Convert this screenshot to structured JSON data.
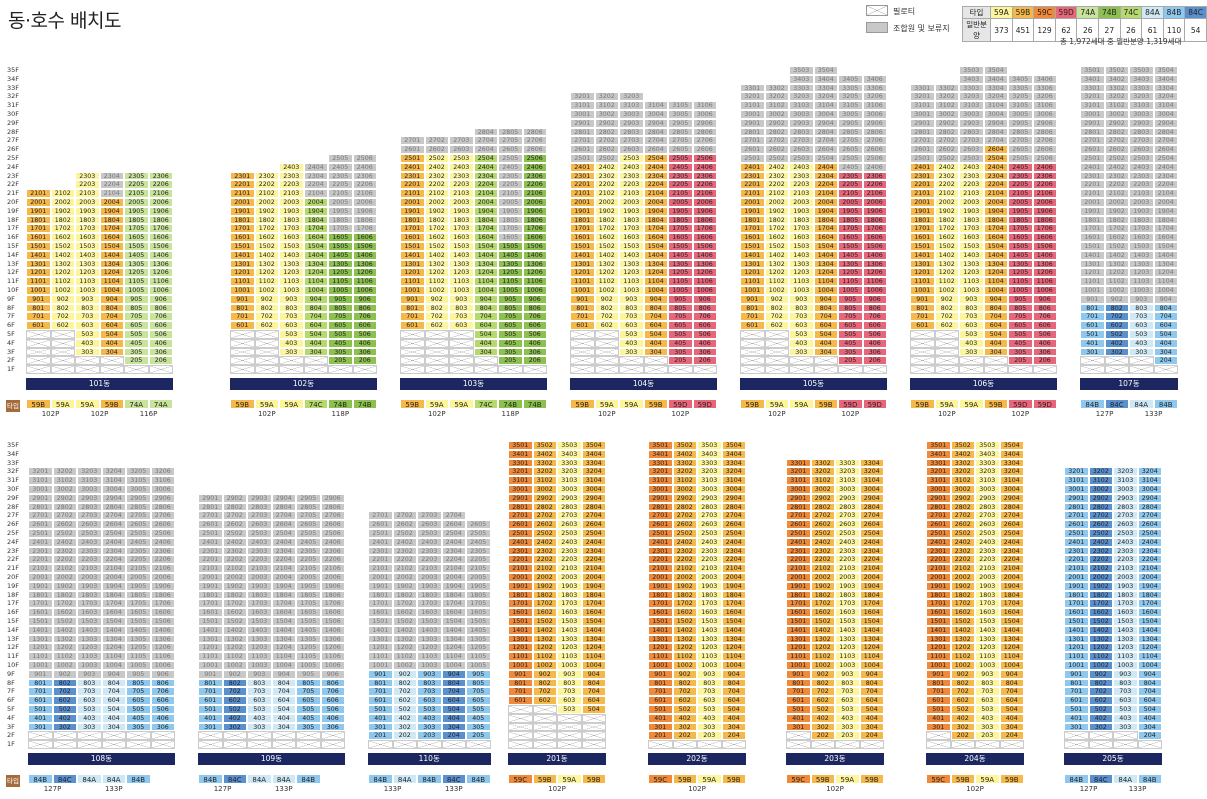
{
  "title": "동·호수 배치도",
  "legend": {
    "pilotis": "필로티",
    "reserved": "조합원 및 보류지"
  },
  "type_table": {
    "row1_label": "타입",
    "row2_label": "일반분양",
    "types": [
      "59A",
      "59B",
      "59C",
      "59D",
      "74A",
      "74B",
      "74C",
      "84A",
      "84B",
      "84C"
    ],
    "counts": [
      "373",
      "451",
      "129",
      "62",
      "26",
      "27",
      "26",
      "61",
      "110",
      "54"
    ]
  },
  "total_text": "총 1,972세대 중 일반분양 1,319세대",
  "type_row_label": "타입",
  "colors": {
    "59A": "#fdf59b",
    "59B": "#f7b84a",
    "59C": "#f08a3a",
    "59D": "#e8667a",
    "74A": "#c8e39a",
    "74B": "#8cc04f",
    "74C": "#b5d96d",
    "84A": "#cfe8f5",
    "84B": "#8ec8ee",
    "84C": "#5b90cf",
    "reserved": "#c8c8c8",
    "pilotis": "#ffffff"
  },
  "floors": [
    "35F",
    "34F",
    "33F",
    "32F",
    "31F",
    "30F",
    "29F",
    "28F",
    "27F",
    "26F",
    "25F",
    "24F",
    "23F",
    "22F",
    "21F",
    "20F",
    "19F",
    "18F",
    "17F",
    "16F",
    "15F",
    "14F",
    "13F",
    "12F",
    "11F",
    "10F",
    "9F",
    "8F",
    "7F",
    "6F",
    "5F",
    "4F",
    "3F",
    "2F",
    "1F"
  ],
  "buildings": [
    {
      "name": "101동",
      "row": 0,
      "x": 26,
      "lines": 6,
      "top": [
        21,
        21,
        23,
        23,
        23,
        23
      ],
      "types": [
        "59B",
        "59A",
        "59A",
        "59B",
        "74A",
        "74A"
      ],
      "ptypes": [
        "102P",
        "102P",
        "116P"
      ],
      "pspans": [
        2,
        2,
        2
      ],
      "reservedAbove": [
        0,
        0,
        0,
        20,
        24,
        24
      ],
      "pil": [
        5,
        5,
        2,
        2,
        1,
        1
      ]
    },
    {
      "name": "102동",
      "row": 0,
      "x": 230,
      "lines": 6,
      "top": [
        23,
        23,
        24,
        24,
        25,
        25
      ],
      "types": [
        "59B",
        "59A",
        "59A",
        "74C",
        "74B",
        "74B"
      ],
      "ptypes": [
        "102P",
        "118P"
      ],
      "pspans": [
        3,
        3
      ],
      "reservedAbove": [
        0,
        0,
        24,
        20,
        16,
        16
      ],
      "pil": [
        5,
        5,
        2,
        2,
        1,
        1
      ]
    },
    {
      "name": "103동",
      "row": 0,
      "x": 400,
      "lines": 6,
      "top": [
        27,
        27,
        27,
        28,
        28,
        28
      ],
      "types": [
        "59B",
        "59A",
        "59A",
        "74C",
        "74B",
        "74B"
      ],
      "ptypes": [
        "102P",
        "118P"
      ],
      "pspans": [
        3,
        3
      ],
      "reservedAbove": [
        25,
        25,
        25,
        25,
        15,
        25
      ],
      "pil": [
        5,
        5,
        5,
        2,
        1,
        1
      ]
    },
    {
      "name": "104동",
      "row": 0,
      "x": 570,
      "lines": 6,
      "top": [
        32,
        32,
        32,
        31,
        31,
        31
      ],
      "types": [
        "59B",
        "59A",
        "59A",
        "59B",
        "59D",
        "59D"
      ],
      "ptypes": [
        "102P",
        "102P"
      ],
      "pspans": [
        3,
        3
      ],
      "reservedAbove": [
        24,
        24,
        25,
        25,
        25,
        25
      ],
      "pil": [
        5,
        5,
        2,
        2,
        1,
        1
      ]
    },
    {
      "name": "105동",
      "row": 0,
      "x": 740,
      "lines": 6,
      "top": [
        33,
        33,
        35,
        35,
        34,
        34
      ],
      "types": [
        "59B",
        "59A",
        "59A",
        "59B",
        "59D",
        "59D"
      ],
      "ptypes": [
        "102P",
        "102P"
      ],
      "pspans": [
        3,
        3
      ],
      "reservedAbove": [
        24,
        24,
        24,
        24,
        23,
        23
      ],
      "pil": [
        5,
        5,
        2,
        2,
        1,
        1
      ]
    },
    {
      "name": "106동",
      "row": 0,
      "x": 910,
      "lines": 6,
      "top": [
        33,
        33,
        35,
        35,
        34,
        34
      ],
      "types": [
        "59B",
        "59A",
        "59A",
        "59B",
        "59D",
        "59D"
      ],
      "ptypes": [
        "102P",
        "102P"
      ],
      "pspans": [
        3,
        3
      ],
      "reservedAbove": [
        24,
        24,
        24,
        26,
        24,
        24
      ],
      "pil": [
        5,
        5,
        2,
        2,
        1,
        1
      ]
    },
    {
      "name": "107동",
      "row": 0,
      "x": 1080,
      "lines": 4,
      "top": [
        35,
        35,
        35,
        35
      ],
      "types": [
        "84B",
        "84C",
        "84A",
        "84B"
      ],
      "ptypes": [
        "127P",
        "133P"
      ],
      "pspans": [
        2,
        2
      ],
      "reservedAbove": [
        8,
        8,
        8,
        8
      ],
      "pil": [
        2,
        2,
        2,
        1
      ]
    },
    {
      "name": "108동",
      "row": 1,
      "x": 28,
      "lines": 6,
      "top": [
        32,
        32,
        32,
        32,
        32,
        32
      ],
      "types": [
        "84B",
        "84C",
        "84A",
        "84A",
        "84B",
        ""
      ],
      "ptypes": [
        "127P",
        "133P"
      ],
      "pspans": [
        2,
        3
      ],
      "reservedAbove": [
        8,
        8,
        8,
        8,
        8,
        8
      ],
      "pil": [
        2,
        2,
        2,
        2,
        2,
        2
      ]
    },
    {
      "name": "109동",
      "row": 1,
      "x": 198,
      "lines": 6,
      "top": [
        29,
        29,
        29,
        29,
        29,
        29
      ],
      "types": [
        "84B",
        "84C",
        "84A",
        "84A",
        "84B",
        ""
      ],
      "ptypes": [
        "127P",
        "133P"
      ],
      "pspans": [
        2,
        3
      ],
      "reservedAbove": [
        8,
        8,
        8,
        8,
        8,
        8
      ],
      "pil": [
        2,
        2,
        2,
        2,
        2,
        2
      ]
    },
    {
      "name": "110동",
      "row": 1,
      "x": 368,
      "lines": 5,
      "top": [
        27,
        27,
        27,
        27,
        26
      ],
      "types": [
        "84B",
        "84A",
        "84B",
        "84C",
        "84B"
      ],
      "ptypes": [
        "133P",
        "133P"
      ],
      "pspans": [
        2,
        3
      ],
      "reservedAbove": [
        9,
        9,
        9,
        9,
        9
      ],
      "pil": [
        1,
        1,
        1,
        1,
        1
      ]
    },
    {
      "name": "201동",
      "row": 1,
      "x": 508,
      "lines": 4,
      "top": [
        35,
        35,
        35,
        35
      ],
      "types": [
        "59C",
        "59B",
        "59A",
        "59B"
      ],
      "ptypes": [
        "102P"
      ],
      "pspans": [
        4
      ],
      "reservedAbove": [
        0,
        0,
        0,
        0
      ],
      "pil": [
        5,
        5,
        4,
        4
      ]
    },
    {
      "name": "202동",
      "row": 1,
      "x": 648,
      "lines": 4,
      "top": [
        35,
        35,
        35,
        35
      ],
      "types": [
        "59C",
        "59B",
        "59A",
        "59B"
      ],
      "ptypes": [
        "102P"
      ],
      "pspans": [
        4
      ],
      "reservedAbove": [
        0,
        0,
        0,
        0
      ],
      "pil": [
        1,
        1,
        1,
        1
      ]
    },
    {
      "name": "203동",
      "row": 1,
      "x": 786,
      "lines": 4,
      "top": [
        33,
        33,
        33,
        33
      ],
      "types": [
        "59C",
        "59B",
        "59A",
        "59B"
      ],
      "ptypes": [
        "102P"
      ],
      "pspans": [
        4
      ],
      "reservedAbove": [
        0,
        0,
        0,
        0
      ],
      "pil": [
        2,
        1,
        1,
        1
      ]
    },
    {
      "name": "204동",
      "row": 1,
      "x": 926,
      "lines": 4,
      "top": [
        35,
        35,
        35,
        35
      ],
      "types": [
        "59C",
        "59B",
        "59A",
        "59B"
      ],
      "ptypes": [
        "102P"
      ],
      "pspans": [
        4
      ],
      "reservedAbove": [
        0,
        0,
        0,
        0
      ],
      "pil": [
        2,
        1,
        1,
        1
      ]
    },
    {
      "name": "205동",
      "row": 1,
      "x": 1064,
      "lines": 4,
      "top": [
        32,
        32,
        32,
        32
      ],
      "types": [
        "84B",
        "84C",
        "84A",
        "84B"
      ],
      "ptypes": [
        "127P",
        "133P"
      ],
      "pspans": [
        2,
        2
      ],
      "reservedAbove": [
        0,
        0,
        0,
        0
      ],
      "pil": [
        2,
        2,
        2,
        1
      ]
    }
  ]
}
